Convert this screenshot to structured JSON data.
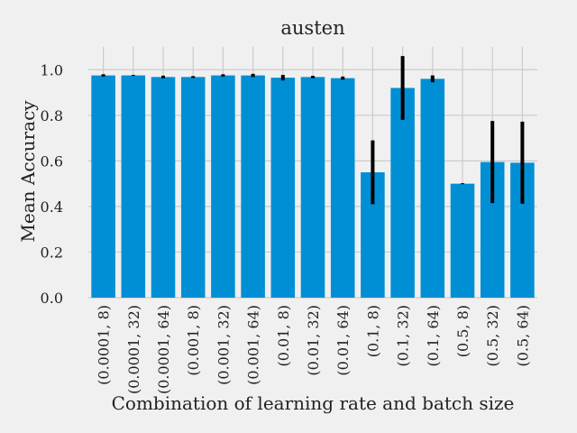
{
  "chart_data": {
    "type": "bar",
    "title": "austen",
    "xlabel": "Combination of learning rate and batch size",
    "ylabel": "Mean Accuracy",
    "ylim": [
      0,
      1.1
    ],
    "yticks": [
      "0.0",
      "0.2",
      "0.4",
      "0.6",
      "0.8",
      "1.0"
    ],
    "grid": true,
    "categories": [
      "(0.0001, 8)",
      "(0.0001, 32)",
      "(0.0001, 64)",
      "(0.001, 8)",
      "(0.001, 32)",
      "(0.001, 64)",
      "(0.01, 8)",
      "(0.01, 32)",
      "(0.01, 64)",
      "(0.1, 8)",
      "(0.1, 32)",
      "(0.1, 64)",
      "(0.5, 8)",
      "(0.5, 32)",
      "(0.5, 64)"
    ],
    "values": [
      0.975,
      0.975,
      0.968,
      0.968,
      0.975,
      0.975,
      0.965,
      0.968,
      0.963,
      0.55,
      0.92,
      0.96,
      0.5,
      0.595,
      0.592
    ],
    "errors": [
      0.005,
      0.002,
      0.006,
      0.004,
      0.005,
      0.007,
      0.012,
      0.005,
      0.007,
      0.14,
      0.14,
      0.015,
      0.002,
      0.18,
      0.18
    ],
    "colors": {
      "bar": "#008fd5",
      "error": "#000000",
      "grid": "#cbcbcb",
      "background": "#f0f0f0"
    }
  }
}
